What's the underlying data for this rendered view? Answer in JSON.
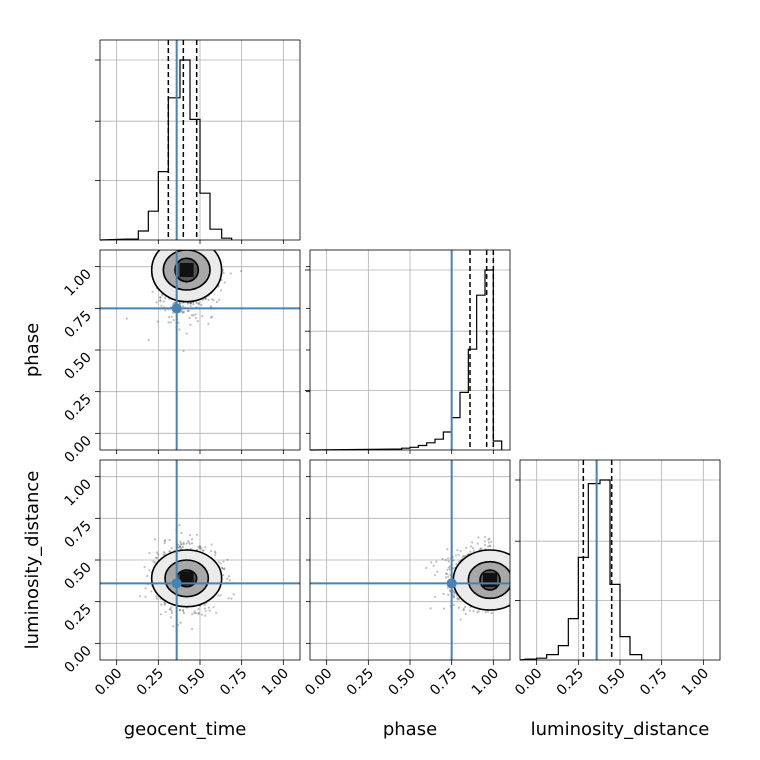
{
  "chart_data": {
    "type": "corner",
    "parameters": [
      "geocent_time",
      "phase",
      "luminosity_distance"
    ],
    "axis_labels": {
      "x": [
        "geocent_time",
        "phase",
        "luminosity_distance"
      ],
      "y": [
        "phase",
        "luminosity_distance"
      ]
    },
    "axis_range": [
      -0.1,
      1.1
    ],
    "tick_labels": [
      "0.00",
      "0.25",
      "0.50",
      "0.75",
      "1.00"
    ],
    "tick_values": [
      0,
      0.25,
      0.5,
      0.75,
      1.0
    ],
    "grid": true,
    "truths": {
      "geocent_time": 0.36,
      "phase": 0.75,
      "luminosity_distance": 0.36
    },
    "truth_color": "#4682b4",
    "contour_color": "#000000",
    "histograms": [
      {
        "parameter": "geocent_time",
        "edges": [
          0.06,
          0.13,
          0.19,
          0.25,
          0.31,
          0.38,
          0.44,
          0.5,
          0.56,
          0.63,
          0.69
        ],
        "counts": [
          0.005,
          0.05,
          0.16,
          0.38,
          0.79,
          1.0,
          0.67,
          0.26,
          0.06,
          0.01
        ],
        "quantile_lines": [
          0.31,
          0.4,
          0.48
        ]
      },
      {
        "parameter": "phase",
        "edges": [
          0.4,
          0.45,
          0.5,
          0.55,
          0.6,
          0.65,
          0.7,
          0.75,
          0.8,
          0.85,
          0.9,
          0.95,
          1.0,
          1.05
        ],
        "counts": [
          0.005,
          0.01,
          0.015,
          0.025,
          0.04,
          0.06,
          0.1,
          0.18,
          0.32,
          0.56,
          0.86,
          1.0,
          0.05
        ],
        "quantile_lines": [
          0.86,
          0.96,
          1.0
        ]
      },
      {
        "parameter": "luminosity_distance",
        "edges": [
          -0.06,
          0.0,
          0.06,
          0.13,
          0.19,
          0.25,
          0.31,
          0.38,
          0.44,
          0.5,
          0.56,
          0.63
        ],
        "counts": [
          0.005,
          0.01,
          0.03,
          0.08,
          0.23,
          0.57,
          0.98,
          1.0,
          0.42,
          0.13,
          0.03
        ],
        "quantile_lines": [
          0.28,
          0.36,
          0.45
        ]
      }
    ],
    "contour_panels": [
      {
        "x_param": "geocent_time",
        "y_param": "phase",
        "peak": [
          0.42,
          0.98
        ],
        "levels": [
          {
            "rx": 0.07,
            "ry": 0.07,
            "fill": "#555555"
          },
          {
            "rx": 0.14,
            "ry": 0.12,
            "fill": "#a8a8a8"
          },
          {
            "rx": 0.21,
            "ry": 0.19,
            "fill": "#ebebeb"
          }
        ],
        "scatter_spread": [
          0.14,
          0.2
        ]
      },
      {
        "x_param": "geocent_time",
        "y_param": "luminosity_distance",
        "peak": [
          0.42,
          0.39
        ],
        "levels": [
          {
            "rx": 0.06,
            "ry": 0.05,
            "fill": "#555555"
          },
          {
            "rx": 0.13,
            "ry": 0.11,
            "fill": "#a8a8a8"
          },
          {
            "rx": 0.21,
            "ry": 0.17,
            "fill": "#ebebeb"
          }
        ],
        "scatter_spread": [
          0.16,
          0.16
        ]
      },
      {
        "x_param": "phase",
        "y_param": "luminosity_distance",
        "peak": [
          0.98,
          0.38
        ],
        "levels": [
          {
            "rx": 0.06,
            "ry": 0.06,
            "fill": "#555555"
          },
          {
            "rx": 0.13,
            "ry": 0.11,
            "fill": "#a8a8a8"
          },
          {
            "rx": 0.22,
            "ry": 0.18,
            "fill": "#ebebeb"
          }
        ],
        "scatter_spread": [
          0.2,
          0.15
        ]
      }
    ]
  }
}
